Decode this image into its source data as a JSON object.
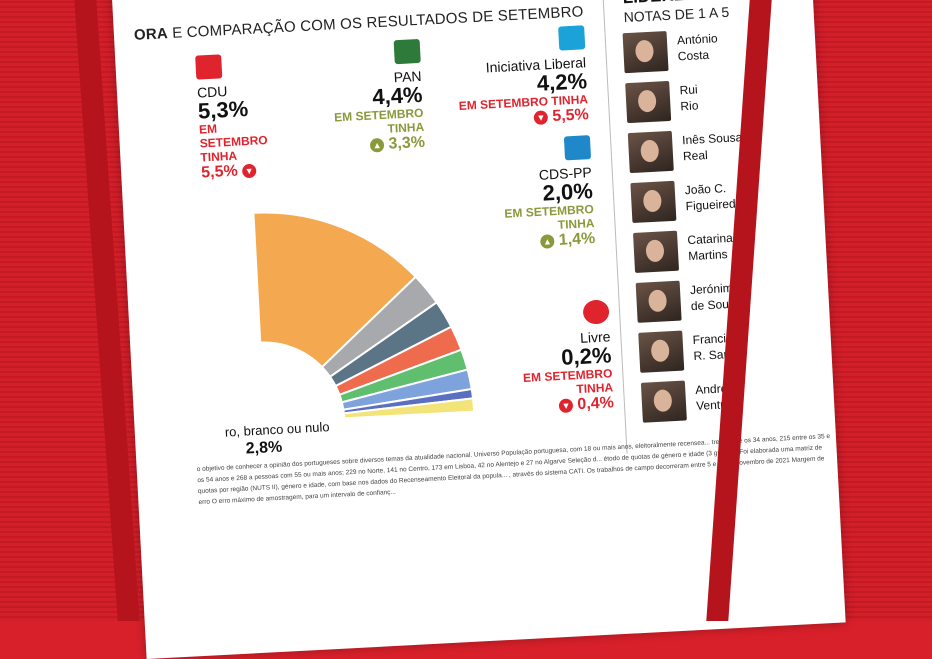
{
  "header": {
    "bold": "ORA",
    "rest": " E COMPARAÇÃO COM OS RESULTADOS DE SETEMBRO"
  },
  "chart_data": {
    "type": "pie",
    "parties": [
      {
        "name": "CDU",
        "value": "5,3%",
        "prev_label": "EM SETEMBRO TINHA",
        "prev": "5,5%",
        "dir": "down",
        "color": "#e0242e"
      },
      {
        "name": "PAN",
        "value": "4,4%",
        "prev_label": "EM SETEMBRO TINHA",
        "prev": "3,3%",
        "dir": "up",
        "color": "#2d7a3a"
      },
      {
        "name": "Iniciativa Liberal",
        "value": "4,2%",
        "prev_label": "EM SETEMBRO TINHA",
        "prev": "5,5%",
        "dir": "down",
        "color": "#1ba3d9"
      },
      {
        "name": "CDS-PP",
        "value": "2,0%",
        "prev_label": "EM SETEMBRO TINHA",
        "prev": "1,4%",
        "dir": "up",
        "color": "#1f88c8"
      },
      {
        "name": "Livre",
        "value": "0,2%",
        "prev_label": "EM SETEMBRO TINHA",
        "prev": "0,4%",
        "dir": "down",
        "color": "#e0242e"
      }
    ],
    "slices": [
      {
        "color": "#f4a84f",
        "value": 38
      },
      {
        "color": "#a7a9ac",
        "value": 7
      },
      {
        "color": "#5b7486",
        "value": 6
      },
      {
        "color": "#ee6c4d",
        "value": 5.3
      },
      {
        "color": "#5fbf6e",
        "value": 4.4
      },
      {
        "color": "#7ea3dc",
        "value": 4.2
      },
      {
        "color": "#5a6fc0",
        "value": 2.0
      },
      {
        "color": "#f3e47a",
        "value": 2.8
      }
    ],
    "total_label": "ro, branco ou nulo",
    "total_value": "2,8%"
  },
  "leaders": {
    "title": "LÍDERES PAR",
    "subtitle": "NOTAS DE 1 A 5",
    "items": [
      {
        "name": "António\nCosta"
      },
      {
        "name": "Rui\nRio"
      },
      {
        "name": "Inês Sousa\nReal"
      },
      {
        "name": "João C.\nFigueiredo"
      },
      {
        "name": "Catarina\nMartins"
      },
      {
        "name": "Jerónimo\nde Sousa"
      },
      {
        "name": "Francisco\nR. Santos"
      },
      {
        "name": "André\nVentura"
      }
    ]
  },
  "footnote": "o objetivo de conhecer a opinião dos portugueses sobre diversos temas da atualidade nacional. Universo População portuguesa, com 18 ou mais anos, eleitoralmente recensea... tre os 18 e os 34 anos, 215 entre os 35 e os 54 anos e 268 a pessoas com 55 ou mais anos; 229 no Norte, 141 no Centro, 173 em Lisboa, 42 no Alentejo e 27 no Algarve Seleção d... étodo de quotas de género e idade (3 grupos). Foi elaborada uma matriz de quotas por região (NUTS II), género e idade, com base nos dados do Recenseamento Eleitoral da popula... , através do sistema CATI. Os trabalhos de campo decorreram entre 5 e 11 de novembro de 2021 Margem de erro O erro máximo de amostragem, para um intervalo de confianç..."
}
